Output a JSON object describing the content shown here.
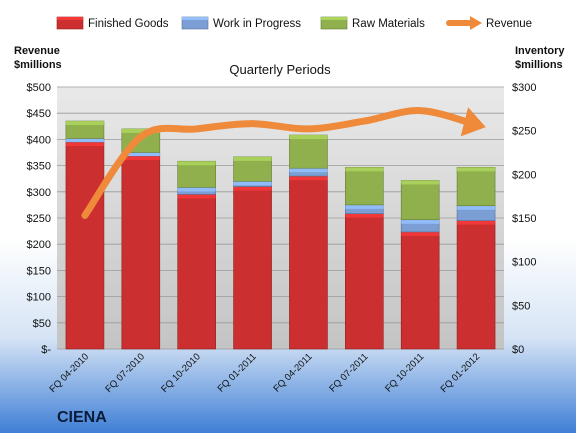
{
  "company": "CIENA",
  "chart_data": {
    "type": "bar",
    "stacked": true,
    "title": "Quarterly Periods",
    "categories": [
      "FQ 04-2010",
      "FQ 07-2010",
      "FQ 10-2010",
      "FQ 01-2011",
      "FQ 04-2011",
      "FQ 07-2011",
      "FQ 10-2011",
      "FQ 01-2012"
    ],
    "left_axis": {
      "label_line1": "Revenue",
      "label_line2": "$millions",
      "range": [
        0,
        500
      ],
      "ticks": [
        "$-",
        "$50",
        "$100",
        "$150",
        "$200",
        "$250",
        "$300",
        "$350",
        "$400",
        "$450",
        "$500"
      ]
    },
    "right_axis": {
      "label_line1": "Inventory",
      "label_line2": "$millions",
      "range": [
        0,
        300
      ],
      "ticks": [
        "$0",
        "$50",
        "$100",
        "$150",
        "$200",
        "$250",
        "$300"
      ]
    },
    "series": [
      {
        "name": "Finished Goods",
        "axis": "right",
        "color": "#cc2f2f",
        "values": [
          237,
          221,
          177,
          186,
          198,
          155,
          134,
          147
        ]
      },
      {
        "name": "Work in Progress",
        "axis": "right",
        "color": "#7b9fd4",
        "values": [
          4,
          4,
          8,
          6,
          9,
          10,
          14,
          17
        ]
      },
      {
        "name": "Raw Materials",
        "axis": "right",
        "color": "#8fb04c",
        "values": [
          20,
          27,
          30,
          28,
          38,
          43,
          45,
          44
        ]
      },
      {
        "name": "Revenue",
        "axis": "left",
        "type": "line",
        "color": "#ee8a3a",
        "values": [
          255,
          405,
          420,
          430,
          420,
          435,
          455,
          428
        ]
      }
    ],
    "grid": true,
    "legend_position": "top"
  }
}
